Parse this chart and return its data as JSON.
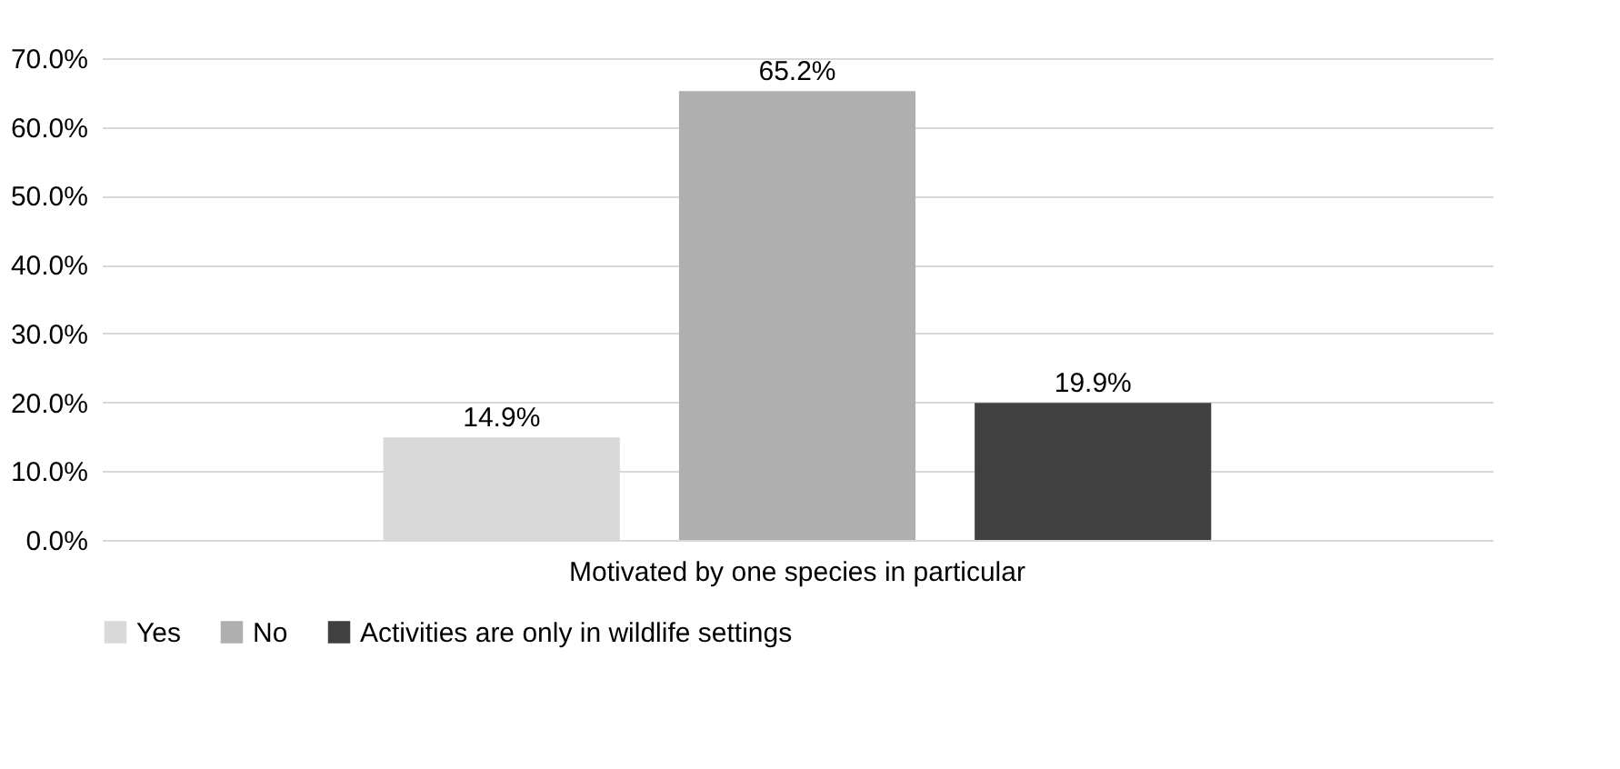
{
  "chart_data": {
    "type": "bar",
    "categories": [
      "Motivated by one species in particular"
    ],
    "series": [
      {
        "name": "Yes",
        "color": "#d9d9d9",
        "values": [
          14.9
        ],
        "value_labels": [
          "14.9%"
        ]
      },
      {
        "name": "No",
        "color": "#afafaf",
        "values": [
          65.2
        ],
        "value_labels": [
          "65.2%"
        ]
      },
      {
        "name": "Activities are only in wildlife settings",
        "color": "#404040",
        "values": [
          19.9
        ],
        "value_labels": [
          "19.9%"
        ]
      }
    ],
    "ylim": [
      0,
      70
    ],
    "yticks": [
      {
        "value": 0,
        "label": "0.0%"
      },
      {
        "value": 10,
        "label": "10.0%"
      },
      {
        "value": 20,
        "label": "20.0%"
      },
      {
        "value": 30,
        "label": "30.0%"
      },
      {
        "value": 40,
        "label": "40.0%"
      },
      {
        "value": 50,
        "label": "50.0%"
      },
      {
        "value": 60,
        "label": "60.0%"
      },
      {
        "value": 70,
        "label": "70.0%"
      }
    ],
    "grid": "y",
    "legend": "bottom"
  }
}
